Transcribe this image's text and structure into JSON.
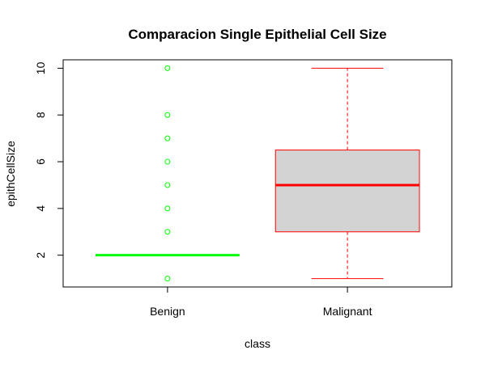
{
  "chart_data": {
    "type": "boxplot",
    "title": "Comparacion Single Epithelial Cell Size",
    "xlabel": "class",
    "ylabel": "epithCellSize",
    "ylim": [
      0.64,
      10.36
    ],
    "yticks": [
      "2",
      "4",
      "6",
      "8",
      "10"
    ],
    "categories": [
      "Benign",
      "Malignant"
    ],
    "boxes": [
      {
        "category": "Benign",
        "min": 2,
        "q1": 2,
        "median": 2,
        "q3": 2,
        "max": 2,
        "outliers": [
          1,
          3,
          4,
          5,
          6,
          7,
          8,
          10
        ],
        "color": "#00ff00",
        "fill": "#d3d3d3"
      },
      {
        "category": "Malignant",
        "min": 1,
        "q1": 3,
        "median": 5,
        "q3": 6.5,
        "max": 10,
        "outliers": [],
        "color": "#ff0000",
        "fill": "#d3d3d3"
      }
    ],
    "grid": false,
    "legend": "none"
  }
}
